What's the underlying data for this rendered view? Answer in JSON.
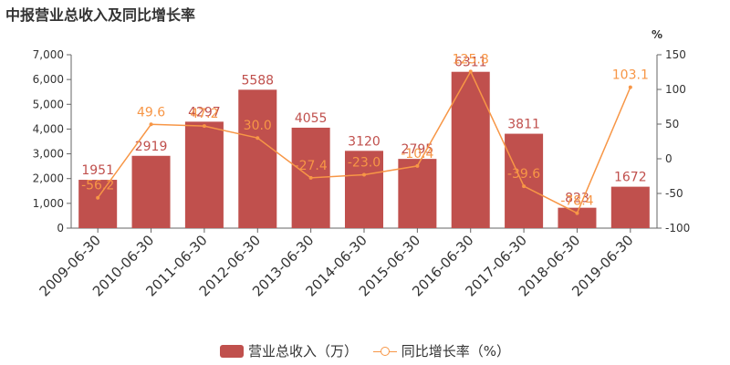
{
  "title": "中报营业总收入及同比增长率",
  "colors": {
    "bar": "#c0504d",
    "line": "#f79646",
    "axis": "#666666",
    "grid": "#e0e0e0",
    "text": "#333333"
  },
  "legend": {
    "bar_label": "营业总收入（万）",
    "line_label": "同比增长率（%）"
  },
  "chart_data": {
    "type": "bar",
    "categories": [
      "2009-06-30",
      "2010-06-30",
      "2011-06-30",
      "2012-06-30",
      "2013-06-30",
      "2014-06-30",
      "2015-06-30",
      "2016-06-30",
      "2017-06-30",
      "2018-06-30",
      "2019-06-30"
    ],
    "series": [
      {
        "name": "营业总收入（万）",
        "type": "bar",
        "axis": "left",
        "values": [
          1951,
          2919,
          4297,
          5588,
          4055,
          3120,
          2795,
          6311,
          3811,
          823,
          1672
        ]
      },
      {
        "name": "同比增长率（%）",
        "type": "line",
        "axis": "right",
        "values": [
          -56.2,
          49.6,
          47.2,
          30.0,
          -27.4,
          -23.0,
          -10.4,
          125.8,
          -39.6,
          -78.4,
          103.1
        ]
      }
    ],
    "left_axis": {
      "ylim": [
        0,
        7000
      ],
      "ticks": [
        "0",
        "1,000",
        "2,000",
        "3,000",
        "4,000",
        "5,000",
        "6,000",
        "7,000"
      ]
    },
    "right_axis": {
      "unit": "%",
      "ylim": [
        -100,
        150
      ],
      "ticks": [
        "-100",
        "-50",
        "0",
        "50",
        "100",
        "150"
      ]
    },
    "grid": false,
    "legend_position": "bottom"
  }
}
